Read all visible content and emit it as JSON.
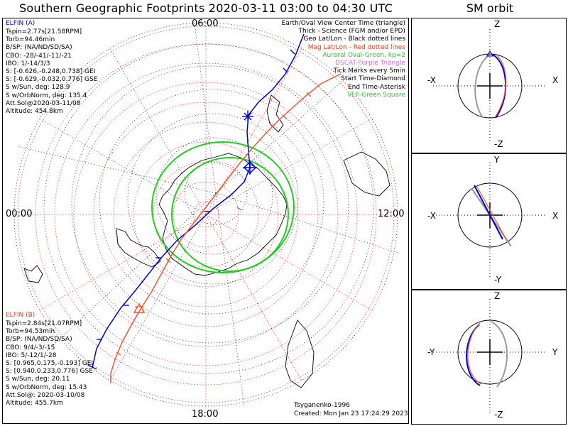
{
  "title": "Southern Geographic Footprints 2020-03-11 03:00 to 04:30 UTC",
  "orbit_title": "SM orbit",
  "time_labels": {
    "top": "06:00",
    "left": "00:00",
    "right": "12:00",
    "bottom": "18:00"
  },
  "elfin_a": {
    "name": "ELFIN (A)",
    "lines": [
      "Tspin=2.77s[21.58RPM]",
      "Torb=94.46min",
      "B/SP: (NA/ND/SD/SA)",
      "CBO: -28/-41/-11/-21",
      "IBO: 1/-14/3/3",
      "S: [-0.626,-0.248,0.738] GEI",
      "S: [-0.629,-0.032,0.776] GSE",
      "S w/Sun, deg: 128.9",
      "S w/OrbNorm, deg: 135.4",
      "Att.Sol@2020-03-11/08",
      "Altitude: 454.8km"
    ]
  },
  "elfin_b": {
    "name": "ELFIN (B)",
    "lines": [
      "Tspin=2.84s[21.07RPM]",
      "Torb=94.53min",
      "B/SP: (NA/ND/SD/SA)",
      "CBO: 9/4/-3/-15",
      "IBO: 5/-12/1/-28",
      "S: [0.965,0.175,-0.193] GEI",
      "S: [0.940,0.233,0.776] GSE",
      "S w/Sun, deg: 20.11",
      "S w/OrbNorm, deg: 15.43",
      "Att.Sol@: 2020-03-10/08",
      "Altitude: 455.7km"
    ]
  },
  "legend": {
    "items": [
      {
        "text": "Earth/Oval View Center Time (triangle)",
        "color": "#000000"
      },
      {
        "text": "Thick - Science (FGM and/or EPD)",
        "color": "#000000"
      },
      {
        "text": "Geo Lat/Lon - Black dotted lines",
        "color": "#000000"
      },
      {
        "text": "Mag Lat/Lon - Red dotted lines",
        "color": "#e0401a"
      },
      {
        "text": "Auroral Oval-Green, kp=2",
        "color": "#22cc22"
      },
      {
        "text": "DSCAT-Purple Triangle",
        "color": "#d070d0"
      },
      {
        "text": "Tick Marks every 5min",
        "color": "#000000"
      },
      {
        "text": "Start Time-Diamond",
        "color": "#000000"
      },
      {
        "text": "End Time-Asterisk",
        "color": "#000000"
      },
      {
        "text": "VLF-Green Square",
        "color": "#22cc22"
      }
    ]
  },
  "credits": {
    "model": "Tsyganenko-1996",
    "created": "Created: Mon Jan 23 17:24:29 2023"
  },
  "orbit_panels": [
    {
      "top": "Z",
      "bottom": "-Z",
      "left": "-X",
      "right": "X"
    },
    {
      "top": "Y",
      "bottom": "-Y",
      "left": "-X",
      "right": "X"
    },
    {
      "top": "Z",
      "bottom": "-Z",
      "left": "-Y",
      "right": "Y"
    }
  ],
  "colors": {
    "elfin_a": "#0000cc",
    "elfin_b": "#ee5533",
    "geo_grid": "#000000",
    "mag_grid": "#e0401a",
    "auroral_oval": "#22cc22",
    "dscat": "#d070d0"
  }
}
